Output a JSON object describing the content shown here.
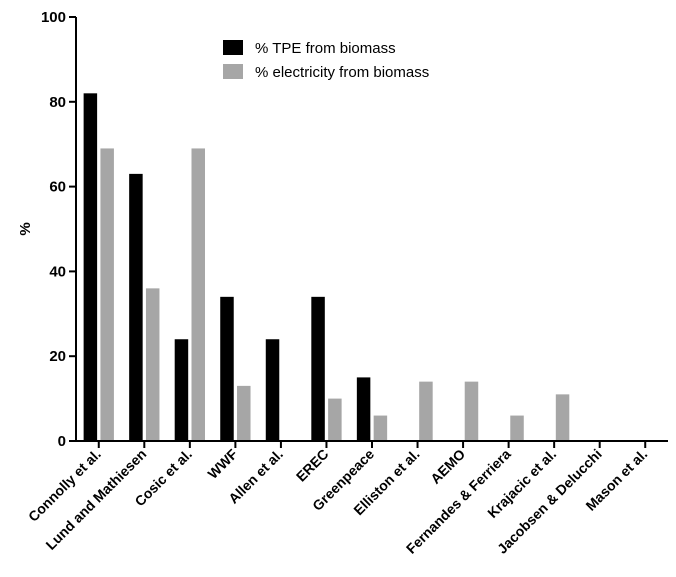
{
  "chart_data": {
    "type": "bar",
    "title": "",
    "xlabel": "",
    "ylabel": "%",
    "ylim": [
      0,
      100
    ],
    "yticks": [
      0,
      20,
      40,
      60,
      80,
      100
    ],
    "ytick_labels": [
      "0",
      "20",
      "40",
      "60",
      "80",
      "100"
    ],
    "grid": false,
    "legend_position": "top-center",
    "categories": [
      "Connolly et al.",
      "Lund and Mathiesen",
      "Cosic et al.",
      "WWF",
      "Allen et al.",
      "EREC",
      "Greenpeace",
      "Elliston et al.",
      "AEMO",
      "Fernandes & Ferriera",
      "Krajacic et al.",
      "Jacobsen & Delucchi",
      "Mason et al."
    ],
    "series": [
      {
        "name": "% TPE from biomass",
        "color": "#000000",
        "values": [
          82,
          63,
          24,
          34,
          24,
          34,
          15,
          0,
          0,
          0,
          0,
          0,
          0
        ]
      },
      {
        "name": "% electricity from biomass",
        "color": "#a6a6a6",
        "values": [
          69,
          36,
          69,
          13,
          0,
          10,
          6,
          14,
          14,
          6,
          11,
          0,
          0
        ]
      }
    ]
  }
}
